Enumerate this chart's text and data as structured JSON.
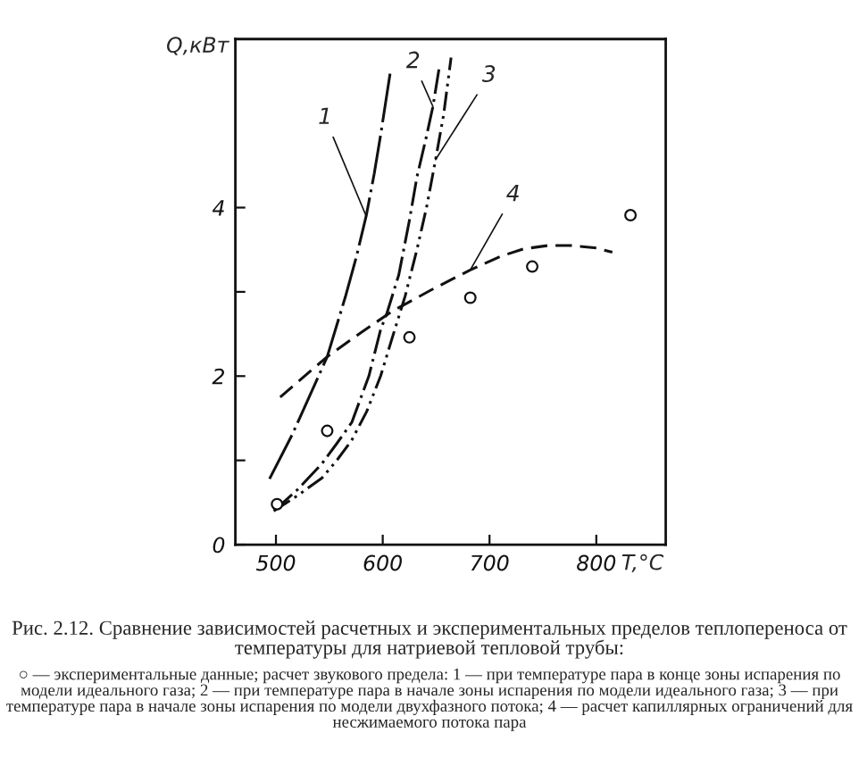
{
  "chart_data": {
    "type": "line",
    "title": "Рис. 2.12. Сравнение зависимостей расчетных и экспериментальных пределов теплопереноса от температуры для натриевой тепловой трубы:",
    "xlabel": "T,°C",
    "ylabel": "Q,кВт",
    "xlim": [
      462,
      865
    ],
    "xticks": [
      500,
      600,
      700,
      800
    ],
    "ylim": [
      0,
      6
    ],
    "yticks": [
      0,
      {
        "value": 1,
        "label": null
      },
      2,
      {
        "value": 3,
        "label": null
      },
      4
    ],
    "series": [
      {
        "color": "#111111",
        "line_style": "longdashdot",
        "x": [
          494,
          515,
          530,
          548,
          565,
          575,
          584.5,
          592,
          598,
          607
        ],
        "values": [
          0.78,
          1.3,
          1.72,
          2.23,
          2.94,
          3.4,
          3.9,
          4.4,
          4.86,
          5.6
        ]
      },
      {
        "color": "#111111",
        "line_style": "dashdot",
        "x": [
          498,
          520,
          543,
          557,
          571,
          587,
          598,
          604,
          615,
          625,
          632,
          641,
          647,
          653
        ],
        "values": [
          0.4,
          0.65,
          0.96,
          1.2,
          1.45,
          2.0,
          2.55,
          2.75,
          3.2,
          3.85,
          4.36,
          4.85,
          5.2,
          5.67
        ]
      },
      {
        "color": "#111111",
        "line_style": "dashdotdot",
        "x": [
          498,
          520,
          543,
          557,
          571,
          585,
          598,
          610,
          621,
          632,
          641,
          649.5,
          657,
          664
        ],
        "values": [
          0.4,
          0.58,
          0.79,
          1.0,
          1.24,
          1.58,
          2.0,
          2.5,
          2.95,
          3.5,
          4.0,
          4.57,
          5.1,
          5.78
        ]
      },
      {
        "color": "#111111",
        "line_style": "dashed",
        "x": [
          504,
          525,
          548,
          580,
          609,
          645,
          682,
          710,
          732,
          755,
          776,
          800,
          815
        ],
        "values": [
          1.75,
          1.98,
          2.23,
          2.52,
          2.77,
          3.02,
          3.26,
          3.42,
          3.51,
          3.55,
          3.55,
          3.52,
          3.47
        ]
      },
      {
        "type": "scatter",
        "color": "#111111",
        "marker": "circle",
        "x": [
          501,
          548,
          625,
          682,
          740,
          832
        ],
        "values": [
          0.48,
          1.35,
          2.46,
          2.93,
          3.3,
          3.91
        ]
      }
    ],
    "annotations": [
      {
        "text": "1",
        "x": 584.5,
        "y": 3.9
      },
      {
        "text": "2",
        "x": 647,
        "y": 5.2
      },
      {
        "text": "3",
        "x": 649.5,
        "y": 4.57
      },
      {
        "text": "4",
        "x": 682,
        "y": 3.26
      },
      "○ — экспериментальные данные; расчет звукового предела: 1 — при температуре пара в конце зоны испарения по модели идеального газа; 2 — при температуре пара в начале зоны испарения по модели идеального газа; 3 — при температуре пара в начале зоны испарения по модели двухфазного потока; 4 — расчет капиллярных ограничений для несжимаемого потока пара"
    ]
  }
}
